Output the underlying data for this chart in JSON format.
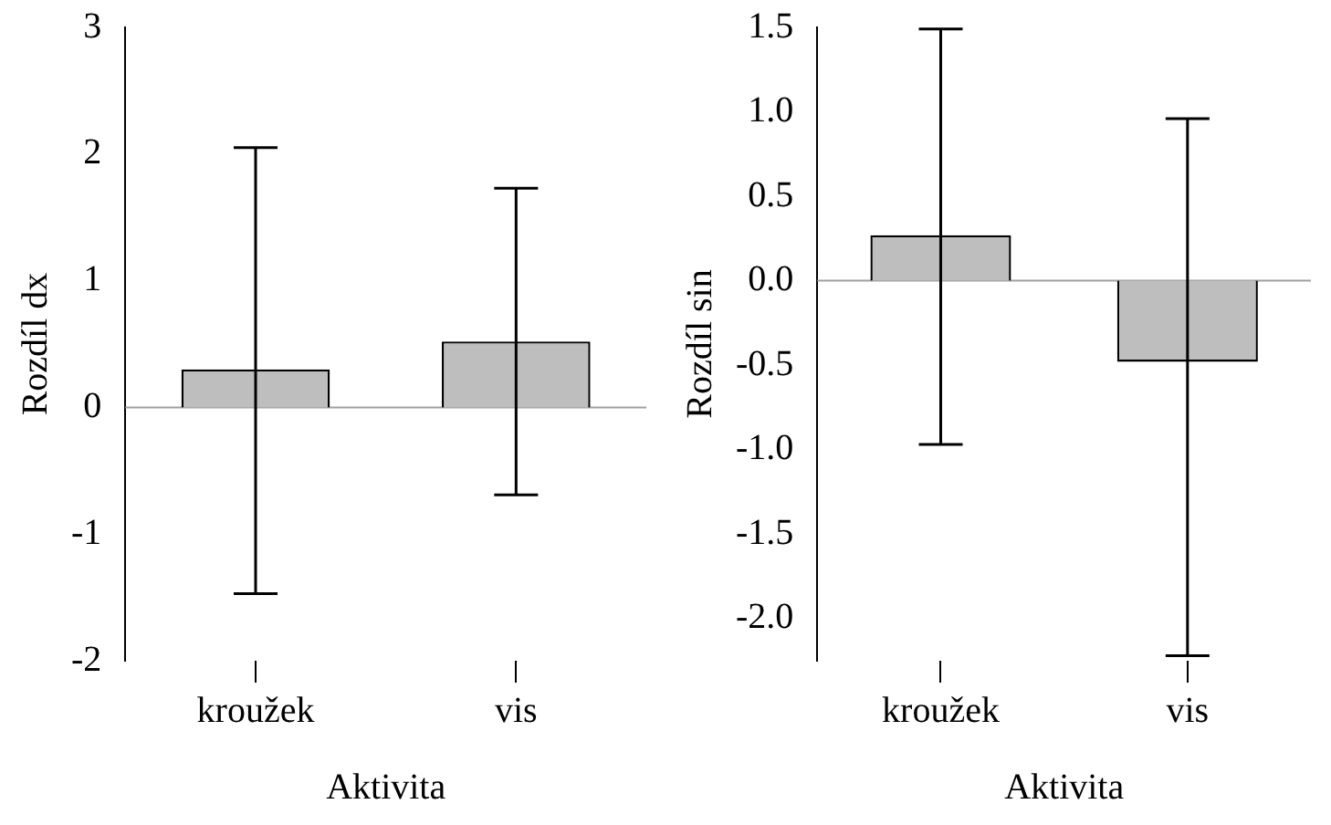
{
  "chart_data": [
    {
      "type": "bar",
      "xlabel": "Aktivita",
      "ylabel": "Rozdíl dx",
      "categories": [
        "kroužek",
        "vis"
      ],
      "values": [
        0.3,
        0.52
      ],
      "errors": [
        [
          -1.47,
          2.05
        ],
        [
          -0.69,
          1.73
        ]
      ],
      "color": "#bebebe",
      "ylim": [
        -2,
        3
      ],
      "yticks": [
        {
          "value": -2,
          "label": "-2"
        },
        {
          "value": -1,
          "label": "-1"
        },
        0,
        1,
        2,
        3
      ],
      "ref_lines": [
        {
          "axis": "y",
          "value": 0,
          "color": "#a0a0a0"
        }
      ],
      "grid": false,
      "legend": false
    },
    {
      "type": "bar",
      "xlabel": "Aktivita",
      "ylabel": "Rozdíl sin",
      "categories": [
        "kroužek",
        "vis"
      ],
      "values": [
        0.27,
        -0.48
      ],
      "errors": [
        [
          -0.97,
          1.49
        ],
        [
          -2.22,
          0.96
        ]
      ],
      "color": "#bebebe",
      "ylim": [
        -2.25,
        1.5
      ],
      "yticks": [
        {
          "value": -2,
          "label": "-2.0"
        },
        {
          "value": -1.5,
          "label": "-1.5"
        },
        {
          "value": -1,
          "label": "-1.0"
        },
        {
          "value": -0.5,
          "label": "-0.5"
        },
        {
          "value": 0,
          "label": "0.0"
        },
        0.5,
        {
          "value": 1,
          "label": "1.0"
        },
        1.5
      ],
      "ref_lines": [
        {
          "axis": "y",
          "value": 0,
          "color": "#a0a0a0"
        }
      ],
      "grid": false,
      "legend": false
    }
  ]
}
